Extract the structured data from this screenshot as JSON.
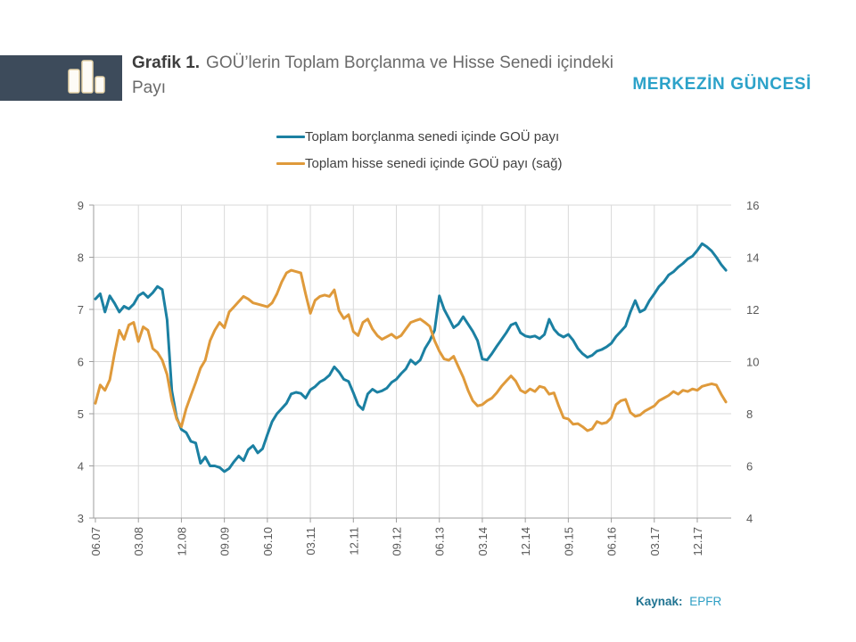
{
  "header": {
    "title_prefix": "Grafik 1.",
    "title_rest": "GOÜ’lerin Toplam Borçlanma ve Hisse Senedi içindeki Payı",
    "brand": "MERKEZİN GÜNCESİ"
  },
  "legend": [
    {
      "label": "Toplam borçlanma senedi içinde GOÜ payı",
      "color": "#1b80a2"
    },
    {
      "label": "Toplam hisse senedi içinde GOÜ payı (sağ)",
      "color": "#df9a3b"
    }
  ],
  "source": {
    "label": "Kaynak:",
    "value": "EPFR"
  },
  "colors": {
    "accent_brand": "#2ca2c9",
    "line_debt": "#1b80a2",
    "line_equity": "#df9a3b",
    "grid": "#d9d9d9",
    "axis": "#9e9e9e",
    "logo_box": "#3d4b5b"
  },
  "chart_data": {
    "type": "line",
    "title": "GOÜ’lerin Toplam Borçlanma ve Hisse Senedi içindeki Payı",
    "frequency": "monthly",
    "x_start": "2007-06",
    "x_end": "2018-06",
    "x_tick_labels": [
      "06.07",
      "03.08",
      "12.08",
      "09.09",
      "06.10",
      "03.11",
      "12.11",
      "09.12",
      "06.13",
      "03.14",
      "12.14",
      "09.15",
      "06.16",
      "03.17",
      "12.17"
    ],
    "left_axis": {
      "min": 3,
      "max": 9,
      "ticks": [
        9,
        8,
        7,
        6,
        5,
        4,
        3
      ]
    },
    "right_axis": {
      "min": 4,
      "max": 16,
      "ticks": [
        16,
        14,
        12,
        10,
        8,
        6,
        4
      ]
    },
    "grid": true,
    "legend_position": "top",
    "series": [
      {
        "name": "Toplam borçlanma senedi içinde GOÜ payı",
        "axis": "left",
        "color": "#1b80a2",
        "values": [
          7.2,
          7.3,
          6.95,
          7.26,
          7.12,
          6.95,
          7.06,
          7.01,
          7.1,
          7.26,
          7.32,
          7.23,
          7.32,
          7.44,
          7.38,
          6.8,
          5.44,
          4.93,
          4.7,
          4.64,
          4.47,
          4.44,
          4.05,
          4.17,
          4.0,
          4.0,
          3.97,
          3.89,
          3.95,
          4.08,
          4.19,
          4.1,
          4.31,
          4.39,
          4.25,
          4.33,
          4.6,
          4.85,
          5.0,
          5.1,
          5.2,
          5.38,
          5.41,
          5.39,
          5.3,
          5.46,
          5.52,
          5.61,
          5.66,
          5.74,
          5.9,
          5.8,
          5.66,
          5.62,
          5.4,
          5.17,
          5.08,
          5.38,
          5.47,
          5.41,
          5.44,
          5.49,
          5.6,
          5.66,
          5.77,
          5.86,
          6.03,
          5.95,
          6.03,
          6.25,
          6.4,
          6.6,
          7.26,
          7.0,
          6.83,
          6.65,
          6.72,
          6.86,
          6.72,
          6.58,
          6.4,
          6.05,
          6.03,
          6.15,
          6.29,
          6.42,
          6.55,
          6.7,
          6.74,
          6.55,
          6.49,
          6.47,
          6.49,
          6.44,
          6.52,
          6.81,
          6.62,
          6.52,
          6.47,
          6.52,
          6.41,
          6.25,
          6.15,
          6.08,
          6.12,
          6.2,
          6.23,
          6.28,
          6.35,
          6.48,
          6.58,
          6.68,
          6.95,
          7.17,
          6.95,
          7.0,
          7.17,
          7.3,
          7.44,
          7.53,
          7.66,
          7.72,
          7.81,
          7.88,
          7.97,
          8.02,
          8.13,
          8.26,
          8.2,
          8.12,
          8.0,
          7.86,
          7.75
        ]
      },
      {
        "name": "Toplam hisse senedi içinde GOÜ payı (sağ)",
        "axis": "right",
        "color": "#df9a3b",
        "values": [
          8.4,
          9.1,
          8.9,
          9.3,
          10.3,
          11.2,
          10.85,
          11.4,
          11.5,
          10.77,
          11.33,
          11.2,
          10.5,
          10.35,
          10.05,
          9.5,
          8.5,
          7.8,
          7.5,
          8.2,
          8.7,
          9.2,
          9.75,
          10.05,
          10.8,
          11.2,
          11.5,
          11.3,
          11.9,
          12.1,
          12.3,
          12.5,
          12.4,
          12.25,
          12.2,
          12.15,
          12.1,
          12.25,
          12.6,
          13.05,
          13.4,
          13.5,
          13.45,
          13.4,
          12.6,
          11.85,
          12.35,
          12.5,
          12.55,
          12.5,
          12.75,
          11.95,
          11.65,
          11.8,
          11.15,
          11.0,
          11.5,
          11.63,
          11.25,
          11.0,
          10.85,
          10.95,
          11.05,
          10.9,
          11.0,
          11.25,
          11.5,
          11.57,
          11.63,
          11.5,
          11.35,
          10.8,
          10.4,
          10.1,
          10.05,
          10.2,
          9.8,
          9.4,
          8.9,
          8.5,
          8.3,
          8.35,
          8.5,
          8.6,
          8.8,
          9.05,
          9.25,
          9.45,
          9.25,
          8.9,
          8.8,
          8.95,
          8.85,
          9.05,
          9.0,
          8.75,
          8.8,
          8.3,
          7.85,
          7.8,
          7.6,
          7.62,
          7.5,
          7.35,
          7.42,
          7.7,
          7.62,
          7.66,
          7.85,
          8.35,
          8.5,
          8.55,
          8.05,
          7.9,
          7.95,
          8.1,
          8.2,
          8.3,
          8.5,
          8.6,
          8.7,
          8.85,
          8.75,
          8.9,
          8.85,
          8.95,
          8.9,
          9.05,
          9.1,
          9.15,
          9.1,
          8.75,
          8.45
        ]
      }
    ]
  }
}
